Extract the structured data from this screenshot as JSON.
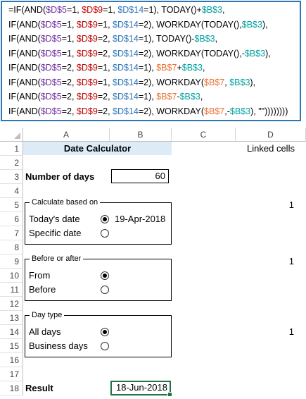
{
  "formula": {
    "lines": [
      [
        [
          "=IF(AND(",
          "fn"
        ],
        [
          "$D$5",
          "d5"
        ],
        [
          "=1, ",
          "fn"
        ],
        [
          "$D$9",
          "d9"
        ],
        [
          "=1, ",
          "fn"
        ],
        [
          "$D$14",
          "d14"
        ],
        [
          "=1), TODAY()+",
          "fn"
        ],
        [
          "$B$3",
          "b3"
        ],
        [
          ",",
          "fn"
        ]
      ],
      [
        [
          "IF(AND(",
          "fn"
        ],
        [
          "$D$5",
          "d5"
        ],
        [
          "=1, ",
          "fn"
        ],
        [
          "$D$9",
          "d9"
        ],
        [
          "=1, ",
          "fn"
        ],
        [
          "$D$14",
          "d14"
        ],
        [
          "=2), WORKDAY(TODAY(),",
          "fn"
        ],
        [
          "$B$3",
          "b3"
        ],
        [
          "),",
          "fn"
        ]
      ],
      [
        [
          "IF(AND(",
          "fn"
        ],
        [
          "$D$5",
          "d5"
        ],
        [
          "=1, ",
          "fn"
        ],
        [
          "$D$9",
          "d9"
        ],
        [
          "=2, ",
          "fn"
        ],
        [
          "$D$14",
          "d14"
        ],
        [
          "=1), TODAY()-",
          "fn"
        ],
        [
          "$B$3",
          "b3"
        ],
        [
          ",",
          "fn"
        ]
      ],
      [
        [
          "IF(AND(",
          "fn"
        ],
        [
          "$D$5",
          "d5"
        ],
        [
          "=1, ",
          "fn"
        ],
        [
          "$D$9",
          "d9"
        ],
        [
          "=2, ",
          "fn"
        ],
        [
          "$D$14",
          "d14"
        ],
        [
          "=2), WORKDAY(TODAY(),-",
          "fn"
        ],
        [
          "$B$3",
          "b3"
        ],
        [
          "),",
          "fn"
        ]
      ],
      [
        [
          "IF(AND(",
          "fn"
        ],
        [
          "$D$5",
          "d5"
        ],
        [
          "=2, ",
          "fn"
        ],
        [
          "$D$9",
          "d9"
        ],
        [
          "=1, ",
          "fn"
        ],
        [
          "$D$14",
          "d14"
        ],
        [
          "=1), ",
          "fn"
        ],
        [
          "$B$7",
          "b7"
        ],
        [
          "+",
          "fn"
        ],
        [
          "$B$3",
          "b3"
        ],
        [
          ",",
          "fn"
        ]
      ],
      [
        [
          "IF(AND(",
          "fn"
        ],
        [
          "$D$5",
          "d5"
        ],
        [
          "=2, ",
          "fn"
        ],
        [
          "$D$9",
          "d9"
        ],
        [
          "=1, ",
          "fn"
        ],
        [
          "$D$14",
          "d14"
        ],
        [
          "=2), WORKDAY(",
          "fn"
        ],
        [
          "$B$7",
          "b7"
        ],
        [
          ", ",
          "fn"
        ],
        [
          "$B$3",
          "b3"
        ],
        [
          "),",
          "fn"
        ]
      ],
      [
        [
          "IF(AND(",
          "fn"
        ],
        [
          "$D$5",
          "d5"
        ],
        [
          "=2, ",
          "fn"
        ],
        [
          "$D$9",
          "d9"
        ],
        [
          "=2, ",
          "fn"
        ],
        [
          "$D$14",
          "d14"
        ],
        [
          "=1), ",
          "fn"
        ],
        [
          "$B$7",
          "b7"
        ],
        [
          "-",
          "fn"
        ],
        [
          "$B$3",
          "b3"
        ],
        [
          ",",
          "fn"
        ]
      ],
      [
        [
          "IF(AND(",
          "fn"
        ],
        [
          "$D$5",
          "d5"
        ],
        [
          "=2, ",
          "fn"
        ],
        [
          "$D$9",
          "d9"
        ],
        [
          "=2, ",
          "fn"
        ],
        [
          "$D$14",
          "d14"
        ],
        [
          "=2), WORKDAY(",
          "fn"
        ],
        [
          "$B$7",
          "b7"
        ],
        [
          ",-",
          "fn"
        ],
        [
          "$B$3",
          "b3"
        ],
        [
          "), \"\"))))))))",
          "fn"
        ]
      ]
    ]
  },
  "columns": [
    "A",
    "B",
    "C",
    "D"
  ],
  "rows": [
    "1",
    "2",
    "3",
    "4",
    "5",
    "6",
    "7",
    "8",
    "9",
    "10",
    "11",
    "12",
    "13",
    "14",
    "15",
    "16",
    "17",
    "18"
  ],
  "cells": {
    "title": "Date Calculator",
    "linked": "Linked cells",
    "num_days_label": "Number of days",
    "num_days_value": "60",
    "d5": "1",
    "d9": "1",
    "d14": "1",
    "result_label": "Result",
    "result_value": "18-Jun-2018"
  },
  "groups": {
    "calc": {
      "title": "Calculate based on",
      "opt1": "Today's date",
      "opt1_date": "19-Apr-2018",
      "opt2": "Specific date"
    },
    "before": {
      "title": "Before or after",
      "opt1": "From",
      "opt2": "Before"
    },
    "daytype": {
      "title": "Day type",
      "opt1": "All days",
      "opt2": "Business days"
    }
  },
  "colors": {
    "formula_border": "#2E75B6",
    "title_fill": "#DDEBF7",
    "selected_border": "#217346"
  }
}
